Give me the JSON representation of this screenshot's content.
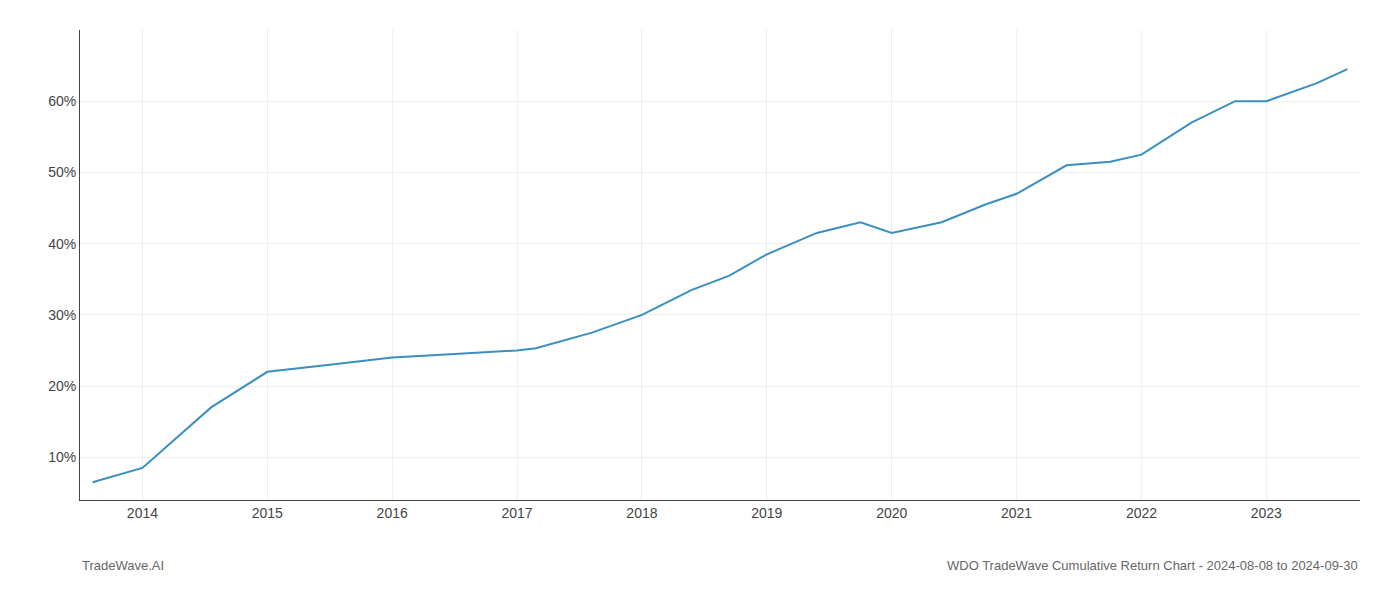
{
  "chart_data": {
    "type": "line",
    "x": [
      2013.6,
      2014.0,
      2014.55,
      2015.0,
      2015.5,
      2016.0,
      2016.5,
      2017.0,
      2017.15,
      2017.6,
      2018.0,
      2018.4,
      2018.7,
      2019.0,
      2019.4,
      2019.75,
      2020.0,
      2020.4,
      2020.75,
      2021.0,
      2021.4,
      2021.75,
      2022.0,
      2022.4,
      2022.75,
      2023.0,
      2023.4,
      2023.65
    ],
    "values": [
      6.5,
      8.5,
      17.0,
      22.0,
      23.0,
      24.0,
      24.5,
      25.0,
      25.3,
      27.5,
      30.0,
      33.5,
      35.5,
      38.5,
      41.5,
      43.0,
      41.5,
      43.0,
      45.5,
      47.0,
      51.0,
      51.5,
      52.5,
      57.0,
      60.0,
      60.0,
      62.5,
      64.5
    ],
    "color": "#3a8fc0",
    "xlim": [
      2013.5,
      2023.75
    ],
    "xticks": [
      2014,
      2015,
      2016,
      2017,
      2018,
      2019,
      2020,
      2021,
      2022,
      2023
    ],
    "ylim": [
      4,
      70
    ],
    "yticks": [
      {
        "value": 10,
        "label": "10%"
      },
      {
        "value": 20,
        "label": "20%"
      },
      {
        "value": 30,
        "label": "30%"
      },
      {
        "value": 40,
        "label": "40%"
      },
      {
        "value": 50,
        "label": "50%"
      },
      {
        "value": 60,
        "label": "60%"
      }
    ],
    "grid": true,
    "annotations": [
      "TradeWave.AI",
      "WDO TradeWave Cumulative Return Chart - 2024-08-08 to 2024-09-30"
    ]
  }
}
